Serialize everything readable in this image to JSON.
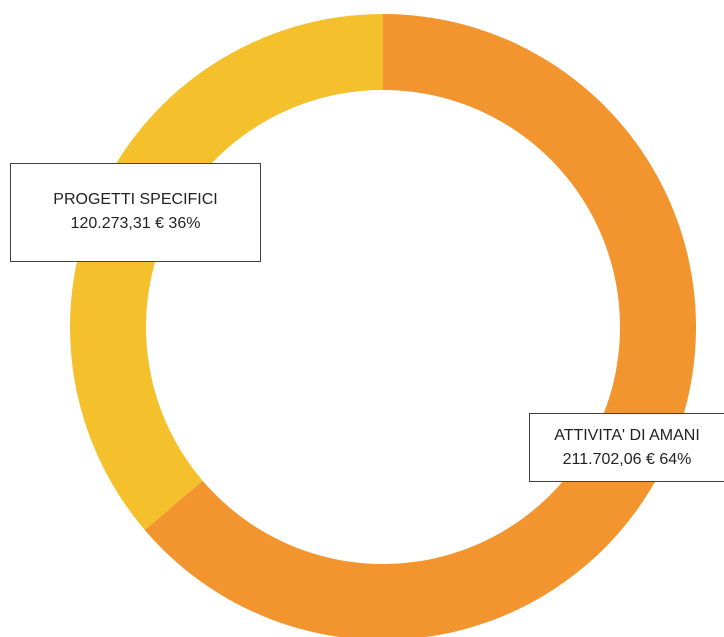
{
  "chart_data": {
    "type": "pie",
    "variant": "doughnut",
    "title": "",
    "start_angle_deg": 0,
    "direction": "clockwise",
    "slices": [
      {
        "label": "ATTIVITA' DI AMANI",
        "value": 211702.06,
        "value_text": "211.702,06 €",
        "percent": 64,
        "percent_text": "64%",
        "color": "#f2952f"
      },
      {
        "label": "PROGETTI SPECIFICI",
        "value": 120273.31,
        "value_text": "120.273,31 €",
        "percent": 36,
        "percent_text": "36%",
        "color": "#f4c02c"
      }
    ]
  }
}
